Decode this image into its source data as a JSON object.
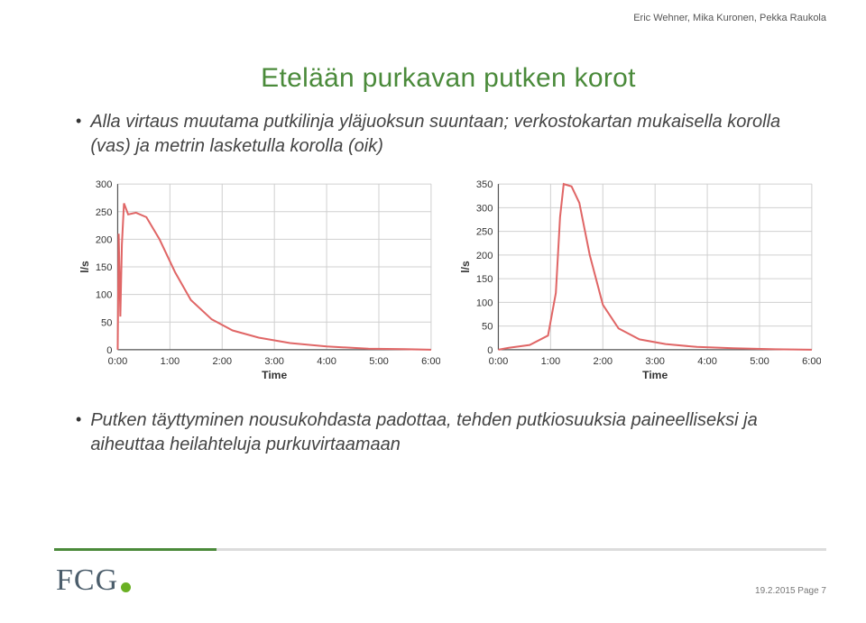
{
  "authors": "Eric Wehner, Mika Kuronen, Pekka Raukola",
  "title": "Etelään purkavan putken korot",
  "bullet1": "Alla virtaus muutama putkilinja yläjuoksun suuntaan; verkostokartan mukaisella korolla (vas) ja metrin lasketulla korolla (oik)",
  "bullet2": "Putken täyttyminen nousukohdasta padottaa, tehden putkiosuuksia paineelliseksi ja aiheuttaa heilahteluja purkuvirtaamaan",
  "footer_date": "19.2.2015",
  "footer_page": "Page 7",
  "logo_text": "FCG",
  "chart_left": {
    "ylabel": "l/s",
    "xlabel": "Time",
    "ylim": [
      0,
      300
    ],
    "yticks": [
      0,
      50,
      100,
      150,
      200,
      250,
      300
    ],
    "xticks": [
      "0:00",
      "1:00",
      "2:00",
      "3:00",
      "4:00",
      "5:00",
      "6:00"
    ],
    "line_color": "#e06666",
    "grid_color": "#d0d0d0",
    "background": "#ffffff",
    "axis_color": "#555555",
    "tick_fontsize": 11,
    "label_fontsize": 12,
    "line_width": 2,
    "series": [
      [
        0.0,
        0
      ],
      [
        0.02,
        210
      ],
      [
        0.05,
        60
      ],
      [
        0.08,
        190
      ],
      [
        0.12,
        265
      ],
      [
        0.2,
        245
      ],
      [
        0.35,
        248
      ],
      [
        0.55,
        240
      ],
      [
        0.8,
        200
      ],
      [
        1.1,
        140
      ],
      [
        1.4,
        90
      ],
      [
        1.8,
        55
      ],
      [
        2.2,
        35
      ],
      [
        2.7,
        22
      ],
      [
        3.3,
        12
      ],
      [
        4.0,
        6
      ],
      [
        4.8,
        2
      ],
      [
        5.5,
        1
      ],
      [
        6.0,
        0
      ]
    ]
  },
  "chart_right": {
    "ylabel": "l/s",
    "xlabel": "Time",
    "ylim": [
      0,
      350
    ],
    "yticks": [
      0,
      50,
      100,
      150,
      200,
      250,
      300,
      350
    ],
    "xticks": [
      "0:00",
      "1:00",
      "2:00",
      "3:00",
      "4:00",
      "5:00",
      "6:00"
    ],
    "line_color": "#e06666",
    "grid_color": "#d0d0d0",
    "background": "#ffffff",
    "axis_color": "#555555",
    "tick_fontsize": 11,
    "label_fontsize": 12,
    "line_width": 2,
    "series": [
      [
        0.0,
        0
      ],
      [
        0.2,
        4
      ],
      [
        0.6,
        10
      ],
      [
        0.95,
        30
      ],
      [
        1.1,
        120
      ],
      [
        1.18,
        280
      ],
      [
        1.25,
        350
      ],
      [
        1.4,
        345
      ],
      [
        1.55,
        310
      ],
      [
        1.75,
        200
      ],
      [
        2.0,
        95
      ],
      [
        2.3,
        45
      ],
      [
        2.7,
        22
      ],
      [
        3.2,
        12
      ],
      [
        3.8,
        6
      ],
      [
        4.5,
        3
      ],
      [
        5.3,
        1
      ],
      [
        6.0,
        0
      ]
    ]
  }
}
